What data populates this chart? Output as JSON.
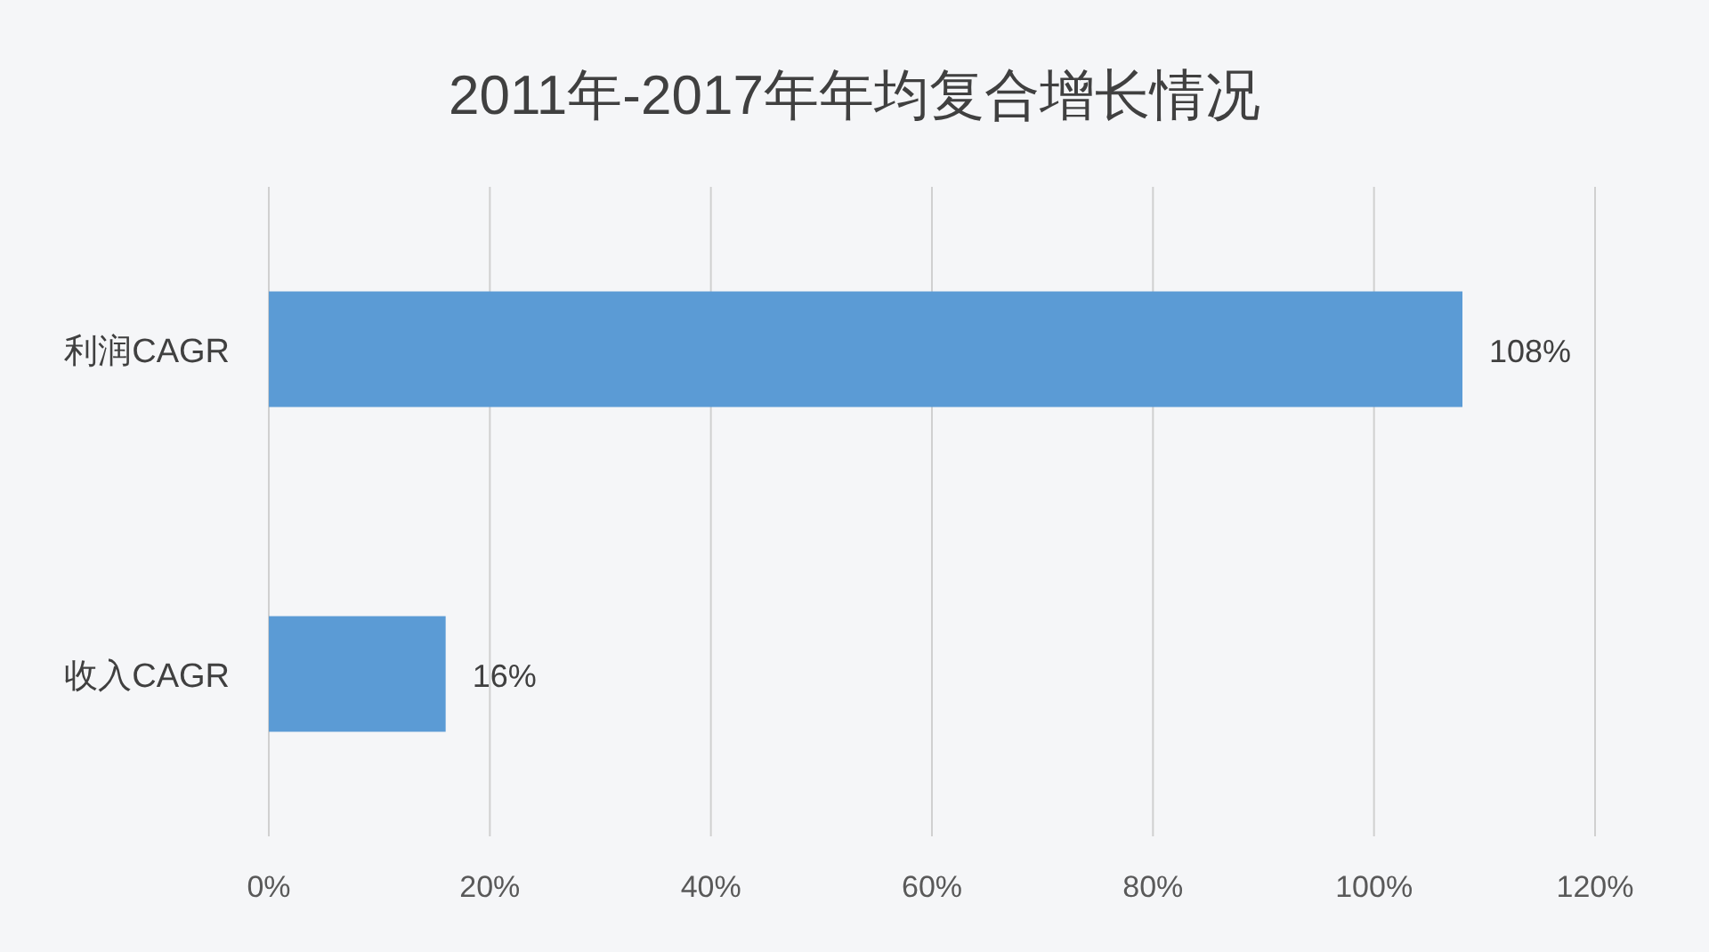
{
  "chart_data": {
    "type": "bar",
    "orientation": "horizontal",
    "title": "2011年-2017年年均复合增长情况",
    "categories": [
      "利润CAGR",
      "收入CAGR"
    ],
    "values": [
      108,
      16
    ],
    "value_labels": [
      "108%",
      "16%"
    ],
    "color": "#5b9bd5",
    "xlim": [
      0,
      120
    ],
    "xticks": [
      {
        "value": 0,
        "label": "0%"
      },
      {
        "value": 20,
        "label": "20%"
      },
      {
        "value": 40,
        "label": "40%"
      },
      {
        "value": 60,
        "label": "60%"
      },
      {
        "value": 80,
        "label": "80%"
      },
      {
        "value": 100,
        "label": "100%"
      },
      {
        "value": 120,
        "label": "120%"
      }
    ],
    "grid": "x"
  }
}
